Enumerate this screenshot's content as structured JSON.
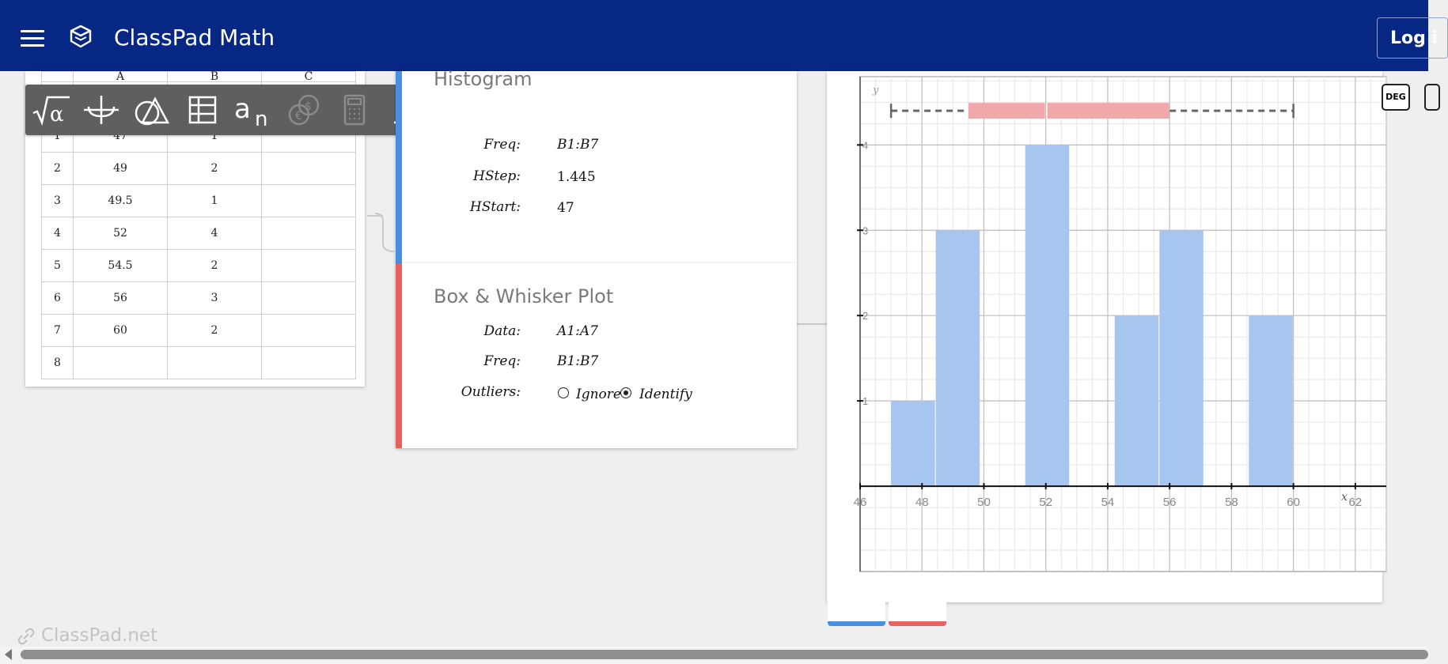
{
  "header": {
    "title": "ClassPad Math",
    "login_label": "Log i"
  },
  "spreadsheet": {
    "columns": [
      "A",
      "B",
      "C"
    ],
    "rows": [
      {
        "n": "1",
        "a": "47",
        "b": "1",
        "c": ""
      },
      {
        "n": "2",
        "a": "49",
        "b": "2",
        "c": ""
      },
      {
        "n": "3",
        "a": "49.5",
        "b": "1",
        "c": ""
      },
      {
        "n": "4",
        "a": "52",
        "b": "4",
        "c": ""
      },
      {
        "n": "5",
        "a": "54.5",
        "b": "2",
        "c": ""
      },
      {
        "n": "6",
        "a": "56",
        "b": "3",
        "c": ""
      },
      {
        "n": "7",
        "a": "60",
        "b": "2",
        "c": ""
      },
      {
        "n": "8",
        "a": "",
        "b": "",
        "c": ""
      }
    ]
  },
  "toolbar": {
    "tools": [
      "sqrt-alpha-icon",
      "psi-graph-icon",
      "geometry-icon",
      "table-icon",
      "sequence-icon",
      "finance-icon",
      "calculator-icon",
      "distribution-icon",
      "3d-icon",
      "number-line-icon",
      "note-icon"
    ]
  },
  "histogram_card": {
    "title": "Histogram",
    "freq_label": "Freq:",
    "freq_value": "B1:B7",
    "hstep_label": "HStep:",
    "hstep_value": "1.445",
    "hstart_label": "HStart:",
    "hstart_value": "47"
  },
  "box_card": {
    "title": "Box & Whisker Plot",
    "data_label": "Data:",
    "data_value": "A1:A7",
    "freq_label": "Freq:",
    "freq_value": "B1:B7",
    "outliers_label": "Outliers:",
    "ignore_label": "Ignore",
    "identify_label": "Identify",
    "selected": "Identify"
  },
  "graph": {
    "deg_label": "DEG",
    "x_axis_label": "x",
    "y_axis_label": "y"
  },
  "chart_data": {
    "type": "bar",
    "subtype": "histogram-with-boxplot",
    "xlim": [
      46,
      63
    ],
    "ylim": [
      -1,
      4.8
    ],
    "x_ticks": [
      "46",
      "48",
      "50",
      "52",
      "54",
      "56",
      "58",
      "60",
      "62"
    ],
    "y_ticks": [
      "1",
      "2",
      "3",
      "4"
    ],
    "bins": [
      {
        "start": 47,
        "end": 48.445,
        "count": 1
      },
      {
        "start": 48.445,
        "end": 49.89,
        "count": 3
      },
      {
        "start": 51.335,
        "end": 52.78,
        "count": 4
      },
      {
        "start": 54.225,
        "end": 55.67,
        "count": 2
      },
      {
        "start": 55.67,
        "end": 57.115,
        "count": 3
      },
      {
        "start": 58.56,
        "end": 60.005,
        "count": 2
      }
    ],
    "boxplot": {
      "min": 47,
      "q1": 49.5,
      "median": 52,
      "q3": 56,
      "max": 60,
      "y": 4.4
    },
    "grid": true,
    "colors": {
      "bar": "#a6c6ef",
      "box": "#f0a8aa",
      "whisker": "#666666"
    }
  },
  "watermark": "ClassPad.net"
}
